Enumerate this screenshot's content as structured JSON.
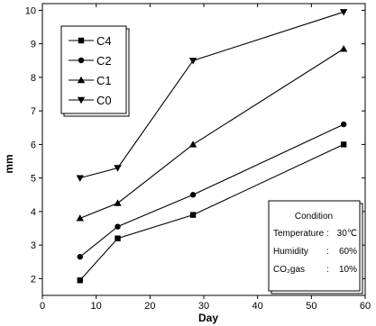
{
  "chart_data": {
    "type": "line",
    "title": "",
    "xlabel": "Day",
    "ylabel": "mm",
    "xlim": [
      0,
      60
    ],
    "ylim": [
      1.5,
      10.2
    ],
    "x_ticks": [
      "0",
      "10",
      "20",
      "30",
      "40",
      "50",
      "60"
    ],
    "x_tick_values": [
      0,
      10,
      20,
      30,
      40,
      50,
      60
    ],
    "y_ticks": [
      "2",
      "3",
      "4",
      "5",
      "6",
      "7",
      "8",
      "9",
      "10"
    ],
    "y_tick_values": [
      2,
      3,
      4,
      5,
      6,
      7,
      8,
      9,
      10
    ],
    "grid": false,
    "legend_position": "top-left",
    "x": [
      7,
      14,
      28,
      56
    ],
    "series": [
      {
        "name": "C4",
        "marker": "square",
        "values": [
          1.95,
          3.2,
          3.9,
          6.0
        ]
      },
      {
        "name": "C2",
        "marker": "circle",
        "values": [
          2.65,
          3.55,
          4.5,
          6.6
        ]
      },
      {
        "name": "C1",
        "marker": "triangle-up",
        "values": [
          3.8,
          4.25,
          6.0,
          8.85
        ]
      },
      {
        "name": "C0",
        "marker": "triangle-down",
        "values": [
          5.0,
          5.3,
          8.5,
          9.95
        ]
      }
    ],
    "annotation": {
      "title": "Condition",
      "rows": [
        {
          "label": "Temperature",
          "sep": ":",
          "value": "30℃"
        },
        {
          "label": "Humidity",
          "sep": ":",
          "value": "60%"
        },
        {
          "label": "CO₂gas",
          "sep": ":",
          "value": "10%"
        }
      ]
    },
    "colors": {
      "line": "#000000",
      "background": "#ffffff"
    }
  }
}
